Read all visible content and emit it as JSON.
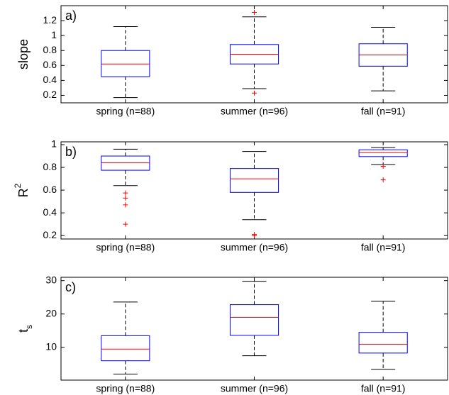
{
  "chart_data": [
    {
      "type": "box",
      "panel_label": "a)",
      "ylabel": "slope",
      "categories": [
        "spring (n=88)",
        "summer (n=96)",
        "fall (n=91)"
      ],
      "box_color": "#0000ff",
      "median_color": "#ff0000",
      "whisker_color": "#000000",
      "flier_color": "#ff0000",
      "boxes": [
        {
          "whislo": 0.17,
          "q1": 0.45,
          "med": 0.62,
          "q3": 0.8,
          "whishi": 1.12,
          "fliers": []
        },
        {
          "whislo": 0.29,
          "q1": 0.62,
          "med": 0.75,
          "q3": 0.88,
          "whishi": 1.25,
          "fliers": [
            0.23,
            1.31
          ]
        },
        {
          "whislo": 0.26,
          "q1": 0.59,
          "med": 0.74,
          "q3": 0.89,
          "whishi": 1.11,
          "fliers": []
        }
      ],
      "ylim": [
        0.1,
        1.4
      ],
      "yticks": [
        0.2,
        0.4,
        0.6,
        0.8,
        1,
        1.2
      ]
    },
    {
      "type": "box",
      "panel_label": "b)",
      "ylabel": "R",
      "ylabel_sup": "2",
      "categories": [
        "spring (n=88)",
        "summer (n=96)",
        "fall (n=91)"
      ],
      "box_color": "#0000ff",
      "median_color": "#ff0000",
      "whisker_color": "#000000",
      "flier_color": "#ff0000",
      "boxes": [
        {
          "whislo": 0.64,
          "q1": 0.775,
          "med": 0.84,
          "q3": 0.9,
          "whishi": 0.96,
          "fliers": [
            0.575,
            0.53,
            0.47,
            0.3
          ]
        },
        {
          "whislo": 0.34,
          "q1": 0.58,
          "med": 0.7,
          "q3": 0.79,
          "whishi": 0.94,
          "fliers": [
            0.21,
            0.2
          ]
        },
        {
          "whislo": 0.825,
          "q1": 0.895,
          "med": 0.93,
          "q3": 0.955,
          "whishi": 0.975,
          "fliers": [
            0.81,
            0.69
          ]
        }
      ],
      "ylim": [
        0.17,
        1.025
      ],
      "yticks": [
        0.2,
        0.4,
        0.6,
        0.8,
        1
      ]
    },
    {
      "type": "box",
      "panel_label": "c)",
      "ylabel": "t",
      "ylabel_sub": "s",
      "categories": [
        "spring (n=88)",
        "summer (n=96)",
        "fall (n=91)"
      ],
      "box_color": "#0000ff",
      "median_color": "#ff0000",
      "whisker_color": "#000000",
      "flier_color": "#ff0000",
      "boxes": [
        {
          "whislo": 2,
          "q1": 6,
          "med": 9.5,
          "q3": 13.5,
          "whishi": 23.6,
          "fliers": []
        },
        {
          "whislo": 7.5,
          "q1": 13.6,
          "med": 19,
          "q3": 22.8,
          "whishi": 29.8,
          "fliers": []
        },
        {
          "whislo": 3.4,
          "q1": 8.3,
          "med": 10.9,
          "q3": 14.5,
          "whishi": 23.8,
          "fliers": []
        }
      ],
      "ylim": [
        0.2,
        31
      ],
      "yticks": [
        10,
        20,
        30
      ]
    }
  ]
}
